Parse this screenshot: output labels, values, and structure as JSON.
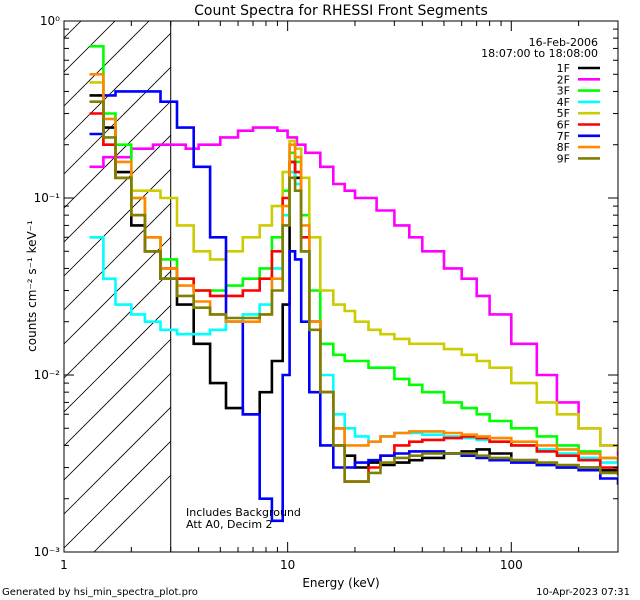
{
  "chart_data": {
    "type": "line",
    "scale": "log-log",
    "title": "Count Spectra for RHESSI Front Segments",
    "xlabel": "Energy (keV)",
    "ylabel": "counts cm⁻² s⁻¹ keV⁻¹",
    "xlim": [
      1,
      300
    ],
    "ylim": [
      0.001,
      1
    ],
    "x_ticks": [
      {
        "value": 1,
        "label": "1"
      },
      {
        "value": 10,
        "label": "10"
      },
      {
        "value": 100,
        "label": "100"
      }
    ],
    "y_ticks": [
      {
        "value": 1,
        "label": "10⁰"
      },
      {
        "value": 0.1,
        "label": "10⁻¹"
      },
      {
        "value": 0.01,
        "label": "10⁻²"
      },
      {
        "value": 0.001,
        "label": "10⁻³"
      }
    ],
    "hatched_region": {
      "x_from": 1,
      "x_to": 3
    },
    "date": "16-Feb-2006",
    "time_range": "18:07:00 to 18:08:00",
    "annotations": [
      "Includes Background",
      "Att A0, Decim 2"
    ],
    "footer_left": "Generated by hsi_min_spectra_plot.pro",
    "footer_right": "10-Apr-2023 07:31",
    "series": [
      {
        "name": "1F",
        "color": "#000000",
        "x": [
          1.3,
          1.5,
          1.7,
          2,
          2.3,
          2.7,
          3.2,
          3.8,
          4.5,
          5.3,
          6.3,
          7.5,
          8.5,
          9.5,
          10.2,
          10.8,
          11.5,
          12.5,
          14,
          16,
          18,
          20,
          23,
          26,
          30,
          35,
          40,
          50,
          60,
          70,
          80,
          100,
          130,
          160,
          200,
          250,
          300
        ],
        "y": [
          0.38,
          0.25,
          0.14,
          0.07,
          0.05,
          0.035,
          0.025,
          0.015,
          0.009,
          0.0065,
          0.006,
          0.008,
          0.012,
          0.025,
          0.16,
          0.13,
          0.05,
          0.02,
          0.008,
          0.005,
          0.0035,
          0.003,
          0.0032,
          0.0031,
          0.0032,
          0.0033,
          0.0034,
          0.0036,
          0.0037,
          0.0038,
          0.0036,
          0.0033,
          0.0031,
          0.003,
          0.003,
          0.0029,
          0.0028
        ]
      },
      {
        "name": "2F",
        "color": "#ff00ff",
        "x": [
          1.3,
          1.5,
          1.7,
          2,
          2.5,
          3,
          3.5,
          4,
          5,
          6,
          7,
          8,
          9,
          10,
          11,
          12,
          14,
          16,
          18,
          20,
          25,
          30,
          35,
          40,
          50,
          60,
          70,
          80,
          100,
          130,
          160,
          200,
          250,
          300
        ],
        "y": [
          0.15,
          0.17,
          0.17,
          0.19,
          0.2,
          0.2,
          0.19,
          0.2,
          0.22,
          0.24,
          0.25,
          0.25,
          0.24,
          0.22,
          0.2,
          0.18,
          0.15,
          0.12,
          0.11,
          0.1,
          0.085,
          0.07,
          0.06,
          0.05,
          0.04,
          0.035,
          0.028,
          0.022,
          0.015,
          0.01,
          0.007,
          0.005,
          0.004,
          0.0035
        ]
      },
      {
        "name": "3F",
        "color": "#00ff00",
        "x": [
          1.3,
          1.5,
          1.7,
          2,
          2.3,
          2.7,
          3.2,
          3.8,
          4.5,
          5.3,
          6.3,
          7.5,
          8.5,
          9.5,
          10.2,
          10.8,
          11.5,
          12.5,
          14,
          16,
          18,
          20,
          23,
          26,
          30,
          35,
          40,
          50,
          60,
          70,
          80,
          100,
          130,
          160,
          200,
          250,
          300
        ],
        "y": [
          0.72,
          0.3,
          0.2,
          0.1,
          0.06,
          0.045,
          0.035,
          0.03,
          0.03,
          0.032,
          0.035,
          0.04,
          0.06,
          0.11,
          0.18,
          0.16,
          0.08,
          0.03,
          0.015,
          0.013,
          0.012,
          0.012,
          0.011,
          0.011,
          0.0095,
          0.0088,
          0.008,
          0.007,
          0.0065,
          0.006,
          0.0055,
          0.005,
          0.0045,
          0.004,
          0.0037,
          0.0034,
          0.0032
        ]
      },
      {
        "name": "4F",
        "color": "#00ffff",
        "x": [
          1.3,
          1.5,
          1.7,
          2,
          2.3,
          2.7,
          3.2,
          3.8,
          4.5,
          5.3,
          6.3,
          7.5,
          8.5,
          9.5,
          10.2,
          10.8,
          11.5,
          12.5,
          14,
          16,
          18,
          20,
          23,
          26,
          30,
          35,
          40,
          50,
          60,
          70,
          80,
          100,
          130,
          160,
          200,
          250,
          300
        ],
        "y": [
          0.06,
          0.035,
          0.025,
          0.022,
          0.02,
          0.018,
          0.017,
          0.017,
          0.018,
          0.02,
          0.022,
          0.025,
          0.04,
          0.08,
          0.14,
          0.12,
          0.05,
          0.02,
          0.01,
          0.006,
          0.005,
          0.0045,
          0.0042,
          0.0045,
          0.0047,
          0.0047,
          0.0046,
          0.0045,
          0.0044,
          0.0043,
          0.0042,
          0.004,
          0.0038,
          0.0036,
          0.0034,
          0.0032,
          0.003
        ]
      },
      {
        "name": "5F",
        "color": "#cccc00",
        "x": [
          1.3,
          1.5,
          1.7,
          2,
          2.3,
          2.7,
          3.2,
          3.8,
          4.5,
          5.3,
          6.3,
          7.5,
          8.5,
          9.5,
          10.2,
          10.8,
          11.5,
          12.5,
          14,
          16,
          18,
          20,
          23,
          26,
          30,
          35,
          40,
          50,
          60,
          70,
          80,
          100,
          130,
          160,
          200,
          250,
          300
        ],
        "y": [
          0.45,
          0.2,
          0.13,
          0.11,
          0.11,
          0.1,
          0.07,
          0.05,
          0.045,
          0.05,
          0.06,
          0.07,
          0.09,
          0.14,
          0.21,
          0.19,
          0.13,
          0.06,
          0.03,
          0.025,
          0.023,
          0.02,
          0.018,
          0.017,
          0.016,
          0.015,
          0.015,
          0.014,
          0.013,
          0.012,
          0.011,
          0.009,
          0.007,
          0.006,
          0.005,
          0.004,
          0.0037
        ]
      },
      {
        "name": "6F",
        "color": "#ff0000",
        "x": [
          1.3,
          1.5,
          1.7,
          2,
          2.3,
          2.7,
          3.2,
          3.8,
          4.5,
          5.3,
          6.3,
          7.5,
          8.5,
          9.5,
          10.2,
          10.8,
          11.5,
          12.5,
          14,
          16,
          18,
          20,
          23,
          26,
          30,
          35,
          40,
          50,
          60,
          70,
          80,
          100,
          130,
          160,
          200,
          250,
          300
        ],
        "y": [
          0.3,
          0.2,
          0.13,
          0.08,
          0.05,
          0.04,
          0.035,
          0.03,
          0.028,
          0.028,
          0.03,
          0.035,
          0.05,
          0.1,
          0.16,
          0.14,
          0.06,
          0.02,
          0.008,
          0.004,
          0.0025,
          0.0025,
          0.003,
          0.0035,
          0.004,
          0.0042,
          0.0043,
          0.0044,
          0.0045,
          0.0044,
          0.0042,
          0.004,
          0.0037,
          0.0035,
          0.0033,
          0.003,
          0.0028
        ]
      },
      {
        "name": "7F",
        "color": "#0000ff",
        "x": [
          1.3,
          1.5,
          1.7,
          2,
          2.3,
          2.7,
          3.2,
          3.8,
          4.5,
          5.3,
          6.3,
          7.5,
          8.5,
          9.5,
          10.2,
          10.8,
          11.5,
          12.5,
          14,
          16,
          18,
          20,
          23,
          26,
          30,
          35,
          40,
          50,
          60,
          70,
          80,
          100,
          130,
          160,
          200,
          250,
          300
        ],
        "y": [
          0.23,
          0.38,
          0.4,
          0.4,
          0.4,
          0.35,
          0.25,
          0.15,
          0.06,
          0.02,
          0.006,
          0.002,
          0.0015,
          0.01,
          0.05,
          0.045,
          0.02,
          0.008,
          0.004,
          0.003,
          0.003,
          0.0032,
          0.0033,
          0.0035,
          0.0036,
          0.0037,
          0.0037,
          0.0036,
          0.0035,
          0.0034,
          0.0033,
          0.0032,
          0.0031,
          0.003,
          0.0029,
          0.0026,
          0.0024
        ]
      },
      {
        "name": "8F",
        "color": "#ff8800",
        "x": [
          1.3,
          1.5,
          1.7,
          2,
          2.3,
          2.7,
          3.2,
          3.8,
          4.5,
          5.3,
          6.3,
          7.5,
          8.5,
          9.5,
          10.2,
          10.8,
          11.5,
          12.5,
          14,
          16,
          18,
          20,
          23,
          26,
          30,
          35,
          40,
          50,
          60,
          70,
          80,
          100,
          130,
          160,
          200,
          250,
          300
        ],
        "y": [
          0.5,
          0.28,
          0.16,
          0.1,
          0.06,
          0.04,
          0.032,
          0.026,
          0.022,
          0.02,
          0.02,
          0.022,
          0.035,
          0.09,
          0.2,
          0.17,
          0.07,
          0.02,
          0.008,
          0.005,
          0.004,
          0.004,
          0.0042,
          0.0045,
          0.0047,
          0.0048,
          0.0048,
          0.0047,
          0.0046,
          0.0045,
          0.0044,
          0.0042,
          0.004,
          0.0038,
          0.0036,
          0.0034,
          0.0032
        ]
      },
      {
        "name": "9F",
        "color": "#808000",
        "x": [
          1.3,
          1.5,
          1.7,
          2,
          2.3,
          2.7,
          3.2,
          3.8,
          4.5,
          5.3,
          6.3,
          7.5,
          8.5,
          9.5,
          10.2,
          10.8,
          11.5,
          12.5,
          14,
          16,
          18,
          20,
          23,
          26,
          30,
          35,
          40,
          50,
          60,
          70,
          80,
          100,
          130,
          160,
          200,
          250,
          300
        ],
        "y": [
          0.35,
          0.22,
          0.13,
          0.08,
          0.05,
          0.035,
          0.028,
          0.024,
          0.022,
          0.021,
          0.021,
          0.022,
          0.03,
          0.07,
          0.13,
          0.11,
          0.05,
          0.018,
          0.008,
          0.004,
          0.0025,
          0.0025,
          0.0028,
          0.0032,
          0.0034,
          0.0035,
          0.0036,
          0.0036,
          0.0036,
          0.0035,
          0.0034,
          0.0033,
          0.0032,
          0.0031,
          0.003,
          0.0028,
          0.0027
        ]
      }
    ]
  }
}
